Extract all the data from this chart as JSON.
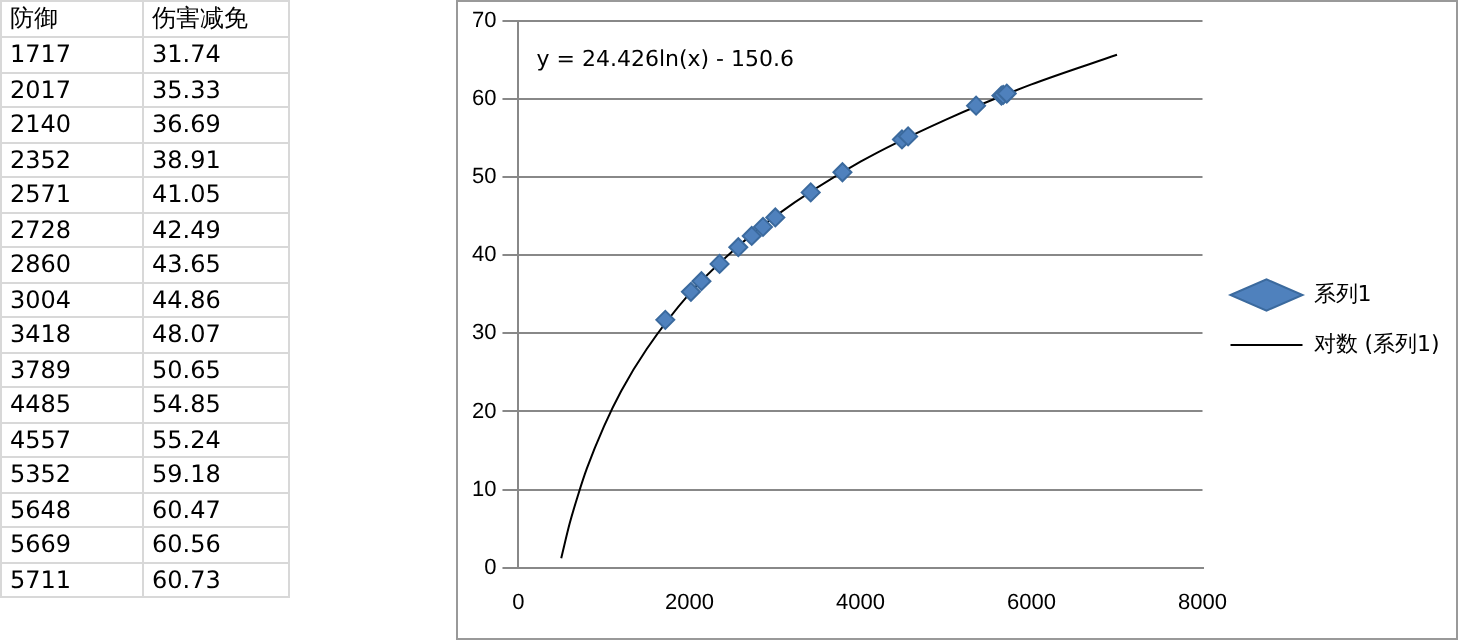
{
  "chart_data": [
    {
      "type": "other",
      "xlabel": "防御",
      "ylabel": "伤害减免",
      "data_labels": true,
      "categories": [
        "1717",
        "2017",
        "2140",
        "2352",
        "2571",
        "2728",
        "2860",
        "3004",
        "3418",
        "3789",
        "4485",
        "4557",
        "5352",
        "5648",
        "5669",
        "5711"
      ],
      "values": [
        31.74,
        35.33,
        36.69,
        38.91,
        41.05,
        42.49,
        43.65,
        44.86,
        48.07,
        50.65,
        54.85,
        55.24,
        59.18,
        60.47,
        60.56,
        60.73
      ]
    },
    {
      "type": "scatter",
      "annotations": [
        "y = 24.426ln(x) - 150.6"
      ],
      "x": [
        1717,
        2017,
        2140,
        2352,
        2571,
        2728,
        2860,
        3004,
        3418,
        3789,
        4485,
        4557,
        5352,
        5648,
        5669,
        5711
      ],
      "series": [
        {
          "name": "系列1",
          "color": "#4f81bd",
          "marker": "diamond",
          "values": [
            31.74,
            35.33,
            36.69,
            38.91,
            41.05,
            42.49,
            43.65,
            44.86,
            48.07,
            50.65,
            54.85,
            55.24,
            59.18,
            60.47,
            60.56,
            60.73
          ]
        },
        {
          "name": "对数 (系列1)",
          "type": "line",
          "color": "#000000",
          "marker": "none",
          "line_style": "solid",
          "x": [
            500,
            600,
            700,
            800,
            1000,
            1200,
            1500,
            2000,
            2500,
            3000,
            4000,
            5000,
            6000,
            7000
          ],
          "values": [
            1.2,
            5.7,
            9.4,
            12.7,
            18.1,
            22.6,
            28,
            35.1,
            40.5,
            45,
            52,
            57.4,
            61.9,
            65.7
          ]
        }
      ],
      "xlim": [
        0,
        8000
      ],
      "xticks": [
        0,
        2000,
        4000,
        6000,
        8000
      ],
      "ylim": [
        0,
        70
      ],
      "yticks": [
        0,
        10,
        20,
        30,
        40,
        50,
        60,
        70
      ],
      "grid": "y",
      "legend": "right"
    }
  ]
}
